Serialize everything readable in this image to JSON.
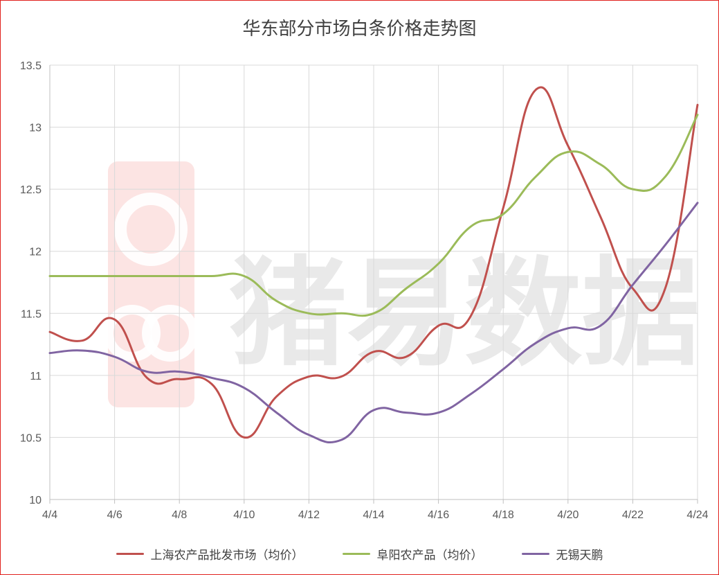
{
  "chart_data": {
    "type": "line",
    "title": "华东部分市场白条价格走势图",
    "xlabel": "",
    "ylabel": "",
    "x_tick_labels": [
      "4/4",
      "4/6",
      "4/8",
      "4/10",
      "4/12",
      "4/14",
      "4/16",
      "4/18",
      "4/20",
      "4/22",
      "4/24"
    ],
    "x": [
      "4/4",
      "4/5",
      "4/6",
      "4/7",
      "4/8",
      "4/9",
      "4/10",
      "4/11",
      "4/12",
      "4/13",
      "4/14",
      "4/15",
      "4/16",
      "4/17",
      "4/18",
      "4/19",
      "4/20",
      "4/21",
      "4/22",
      "4/23",
      "4/24"
    ],
    "y_tick_labels": [
      "10",
      "10.5",
      "11",
      "11.5",
      "12",
      "12.5",
      "13",
      "13.5"
    ],
    "ylim": [
      10,
      13.5
    ],
    "grid": true,
    "legend_position": "bottom",
    "series": [
      {
        "name": "上海农产品批发市场（均价）",
        "color": "#c0504d",
        "values": [
          11.35,
          11.28,
          11.45,
          10.98,
          10.97,
          10.93,
          10.5,
          10.83,
          10.99,
          10.99,
          11.19,
          11.15,
          11.4,
          11.48,
          12.35,
          13.3,
          12.85,
          12.28,
          11.7,
          11.7,
          13.18
        ]
      },
      {
        "name": "阜阳农产品（均价）",
        "color": "#9bbb59",
        "values": [
          11.8,
          11.8,
          11.8,
          11.8,
          11.8,
          11.8,
          11.8,
          11.6,
          11.5,
          11.5,
          11.5,
          11.7,
          11.9,
          12.2,
          12.3,
          12.6,
          12.8,
          12.7,
          12.5,
          12.6,
          13.1
        ]
      },
      {
        "name": "无锡天鹏",
        "color": "#8064a2",
        "values": [
          11.18,
          11.2,
          11.15,
          11.03,
          11.03,
          10.98,
          10.9,
          10.7,
          10.52,
          10.48,
          10.72,
          10.7,
          10.7,
          10.85,
          11.05,
          11.26,
          11.38,
          11.4,
          11.73,
          12.05,
          12.39
        ]
      }
    ]
  },
  "watermark": {
    "text": "猪易数据",
    "color": "#e8423a"
  }
}
